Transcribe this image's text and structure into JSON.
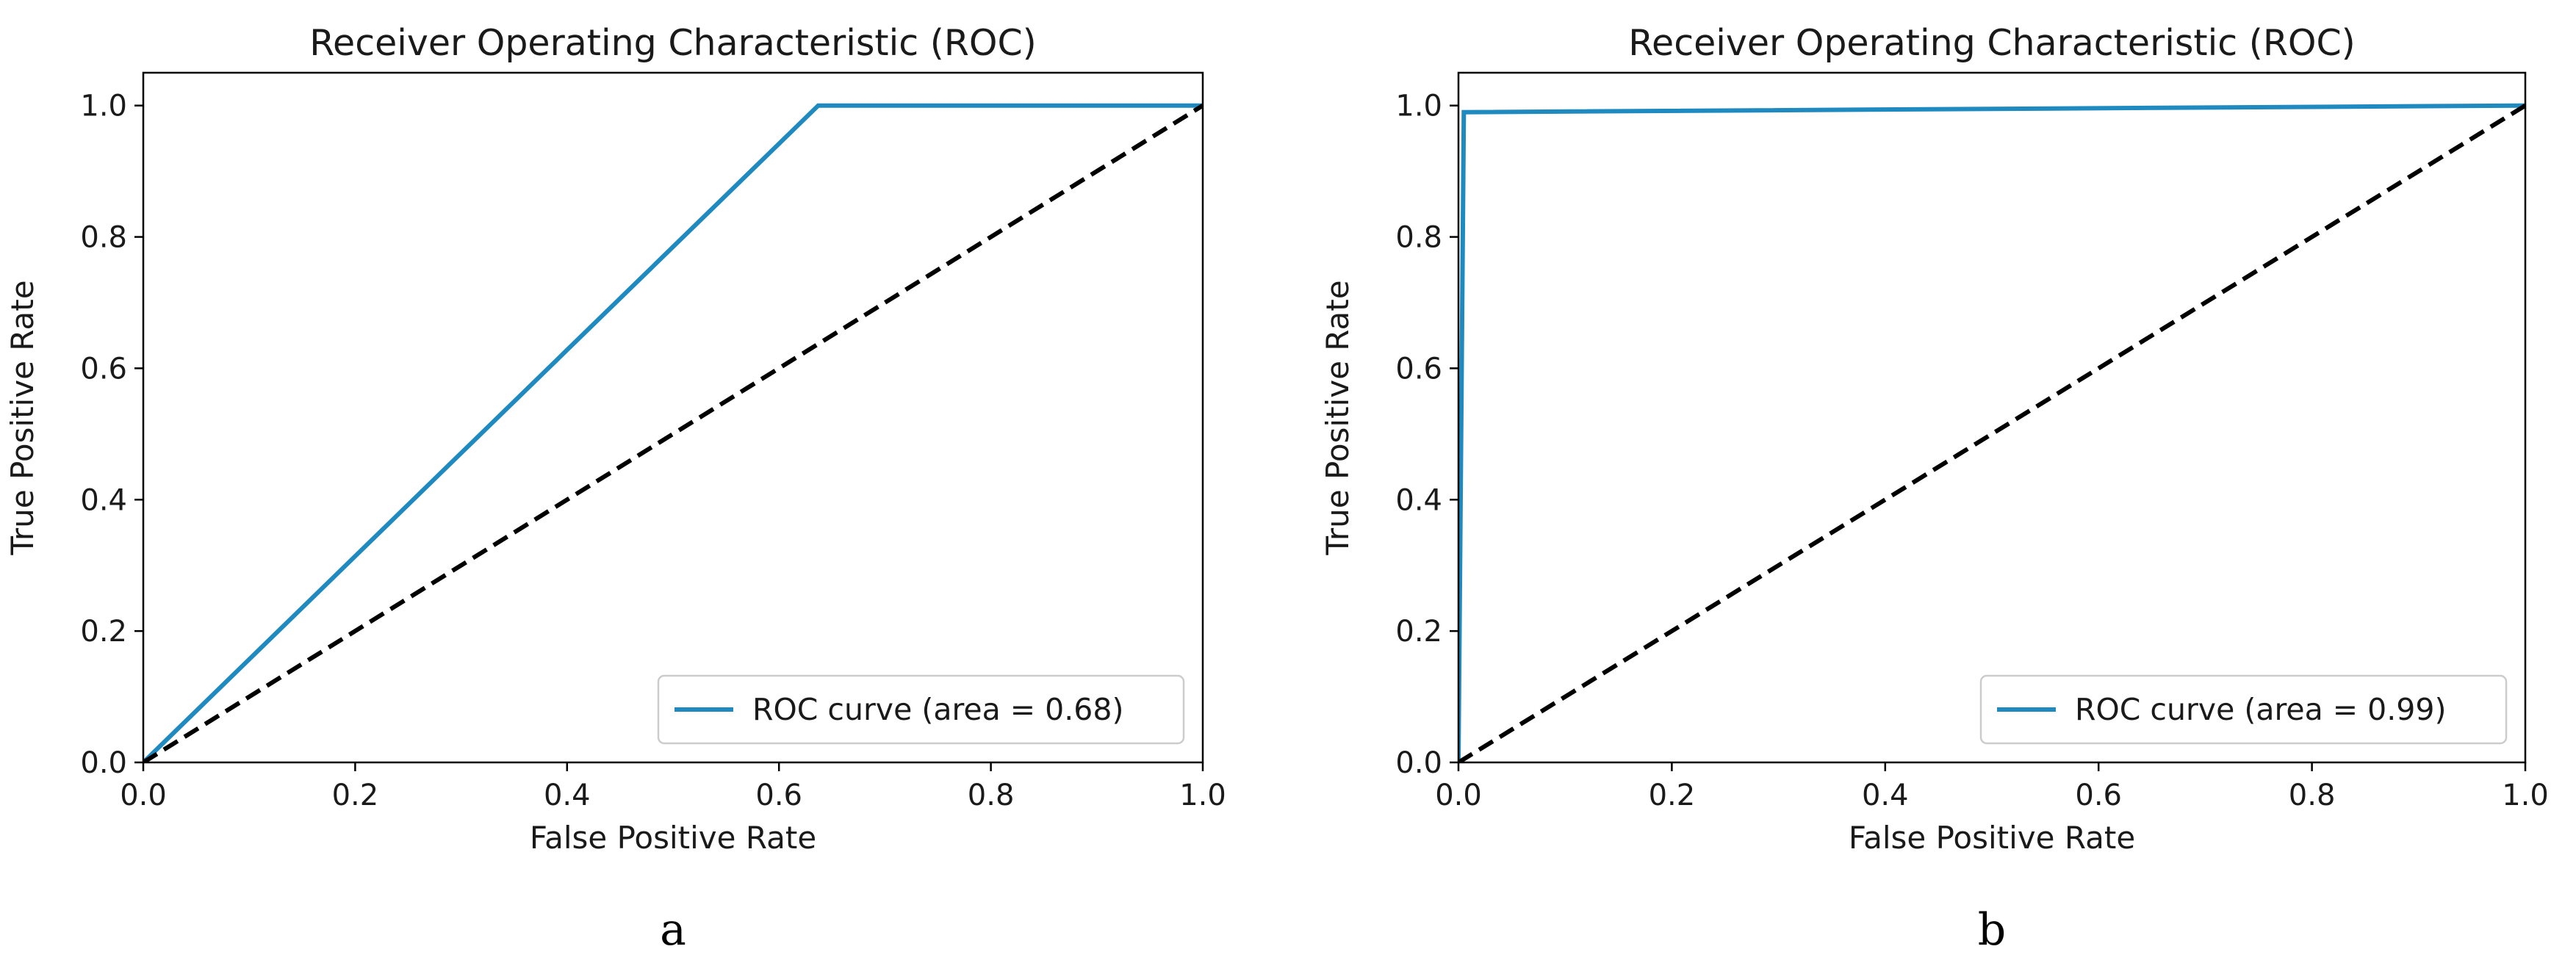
{
  "chart_data": [
    {
      "type": "line",
      "panel_label": "a",
      "title": "Receiver Operating Characteristic (ROC)",
      "xlabel": "False Positive Rate",
      "ylabel": "True Positive Rate",
      "xlim": [
        0.0,
        1.0
      ],
      "ylim": [
        0.0,
        1.05
      ],
      "xticks": [
        "0.0",
        "0.2",
        "0.4",
        "0.6",
        "0.8",
        "1.0"
      ],
      "yticks": [
        "0.0",
        "0.2",
        "0.4",
        "0.6",
        "0.8",
        "1.0"
      ],
      "grid": false,
      "legend_position": "lower-right",
      "series": [
        {
          "name": "ROC curve (area = 0.68)",
          "color": "#1f8ac0",
          "style": "solid",
          "x": [
            0.0,
            0.637,
            1.0
          ],
          "y": [
            0.0,
            1.0,
            1.0
          ]
        },
        {
          "name": "chance",
          "color": "#000000",
          "style": "dashed",
          "in_legend": false,
          "x": [
            0.0,
            1.0
          ],
          "y": [
            0.0,
            1.0
          ]
        }
      ]
    },
    {
      "type": "line",
      "panel_label": "b",
      "title": "Receiver Operating Characteristic (ROC)",
      "xlabel": "False Positive Rate",
      "ylabel": "True Positive Rate",
      "xlim": [
        0.0,
        1.0
      ],
      "ylim": [
        0.0,
        1.05
      ],
      "xticks": [
        "0.0",
        "0.2",
        "0.4",
        "0.6",
        "0.8",
        "1.0"
      ],
      "yticks": [
        "0.0",
        "0.2",
        "0.4",
        "0.6",
        "0.8",
        "1.0"
      ],
      "grid": false,
      "legend_position": "lower-right",
      "series": [
        {
          "name": "ROC curve (area = 0.99)",
          "color": "#1f8ac0",
          "style": "solid",
          "x": [
            0.0,
            0.005,
            1.0
          ],
          "y": [
            0.0,
            0.99,
            1.0
          ]
        },
        {
          "name": "chance",
          "color": "#000000",
          "style": "dashed",
          "in_legend": false,
          "x": [
            0.0,
            1.0
          ],
          "y": [
            0.0,
            1.0
          ]
        }
      ]
    }
  ]
}
